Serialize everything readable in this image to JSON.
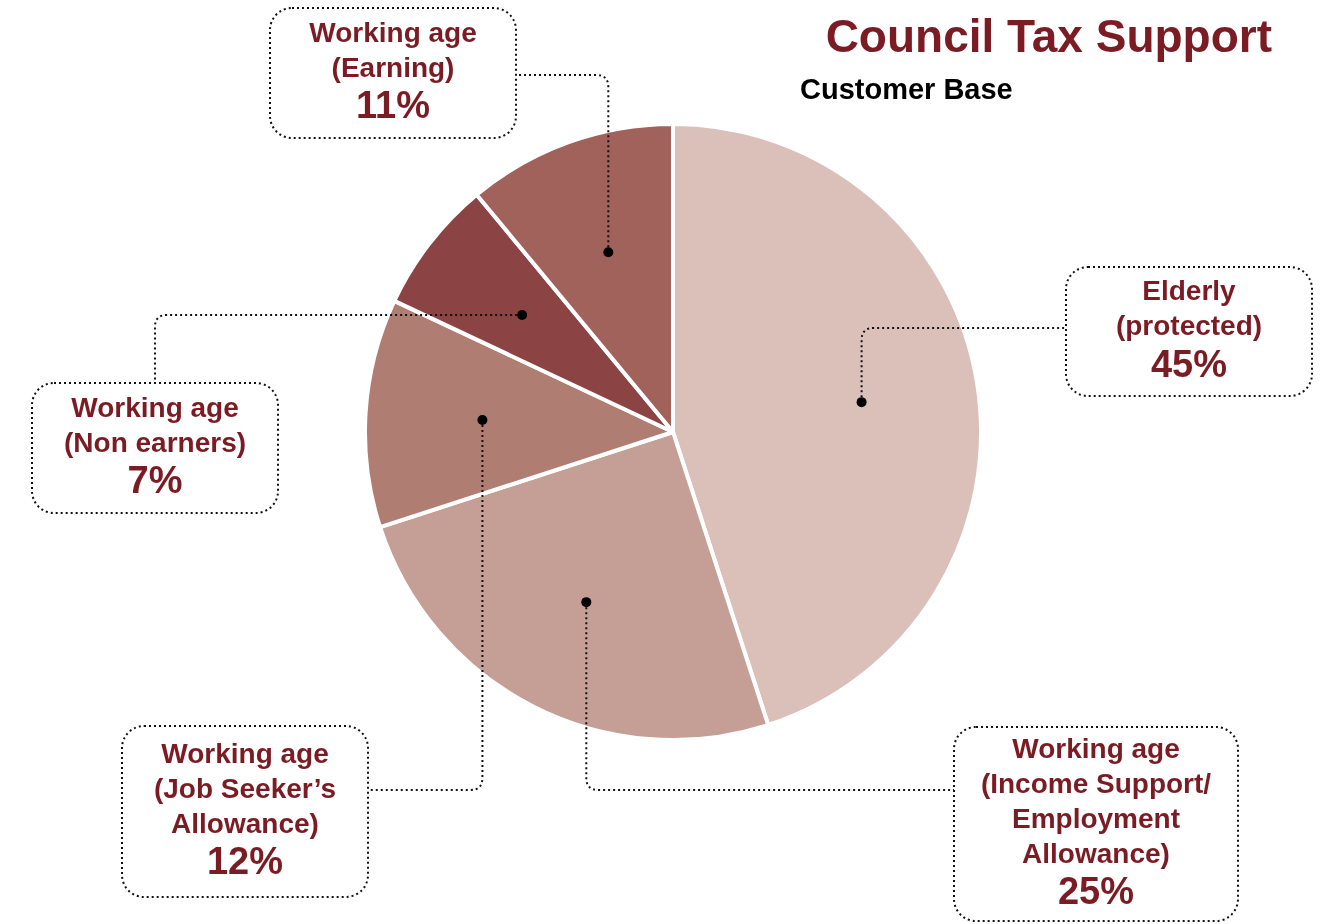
{
  "chart_data": {
    "type": "pie",
    "title": "Council Tax Support",
    "subtitle": "Customer Base",
    "categories": [
      "Elderly (protected)",
      "Working age (Income Support/ Employment Allowance)",
      "Working age (Job Seeker’s Allowance)",
      "Working age (Non earners)",
      "Working age (Earning)"
    ],
    "values": [
      45,
      25,
      12,
      7,
      11
    ],
    "value_labels": [
      "45%",
      "25%",
      "12%",
      "7%",
      "11%"
    ],
    "colors": [
      "#dbc0ba",
      "#c59e96",
      "#b07d73",
      "#8c4343",
      "#a0625b"
    ],
    "legend": false
  }
}
